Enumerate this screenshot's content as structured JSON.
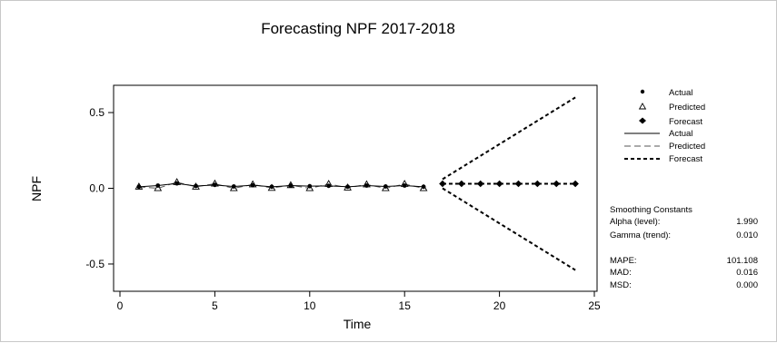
{
  "chart_data": {
    "type": "line",
    "title": "Forecasting NPF 2017-2018",
    "xlabel": "Time",
    "ylabel": "NPF",
    "xlim": [
      0,
      25
    ],
    "ylim": [
      -0.68,
      0.68
    ],
    "xticks": [
      0,
      5,
      10,
      15,
      20,
      25
    ],
    "yticks": [
      -0.5,
      0.0,
      0.5
    ],
    "ytick_labels": [
      "-0.5",
      "0.0",
      "0.5"
    ],
    "grid": false,
    "legend_position": "right",
    "series": [
      {
        "name": "Actual",
        "marker": "circle",
        "line": "solid",
        "x": [
          1,
          2,
          3,
          4,
          5,
          6,
          7,
          8,
          9,
          10,
          11,
          12,
          13,
          14,
          15,
          16
        ],
        "y": [
          0.01,
          0.018,
          0.032,
          0.015,
          0.022,
          0.012,
          0.02,
          0.01,
          0.018,
          0.014,
          0.016,
          0.01,
          0.018,
          0.012,
          0.018,
          0.01
        ]
      },
      {
        "name": "Predicted",
        "marker": "triangle",
        "line": "dashed",
        "x": [
          1,
          2,
          3,
          4,
          5,
          6,
          7,
          8,
          9,
          10,
          11,
          12,
          13,
          14,
          15,
          16
        ],
        "y": [
          0.01,
          0.0,
          0.04,
          0.01,
          0.03,
          0.0,
          0.025,
          0.002,
          0.02,
          0.0,
          0.028,
          0.004,
          0.025,
          0.0,
          0.028,
          0.0
        ]
      },
      {
        "name": "Forecast",
        "marker": "diamond",
        "line": "short-dashed",
        "x": [
          17,
          18,
          19,
          20,
          21,
          22,
          23,
          24
        ],
        "y": [
          0.03,
          0.03,
          0.03,
          0.03,
          0.03,
          0.03,
          0.03,
          0.03
        ]
      }
    ],
    "forecast_bounds": {
      "x": [
        17,
        24
      ],
      "upper": [
        0.06,
        0.6
      ],
      "lower": [
        0.0,
        -0.54
      ]
    },
    "legend": {
      "symbols": [
        "Actual",
        "Predicted",
        "Forecast"
      ],
      "lines": [
        "Actual",
        "Predicted",
        "Forecast"
      ]
    },
    "stats": {
      "heading": "Smoothing Constants",
      "rows": [
        {
          "label": "Alpha (level):",
          "value": "1.990"
        },
        {
          "label": "Gamma (trend):",
          "value": "0.010"
        }
      ],
      "accuracy": [
        {
          "label": "MAPE:",
          "value": "101.108"
        },
        {
          "label": "MAD:",
          "value": "0.016"
        },
        {
          "label": "MSD:",
          "value": "0.000"
        }
      ]
    }
  }
}
